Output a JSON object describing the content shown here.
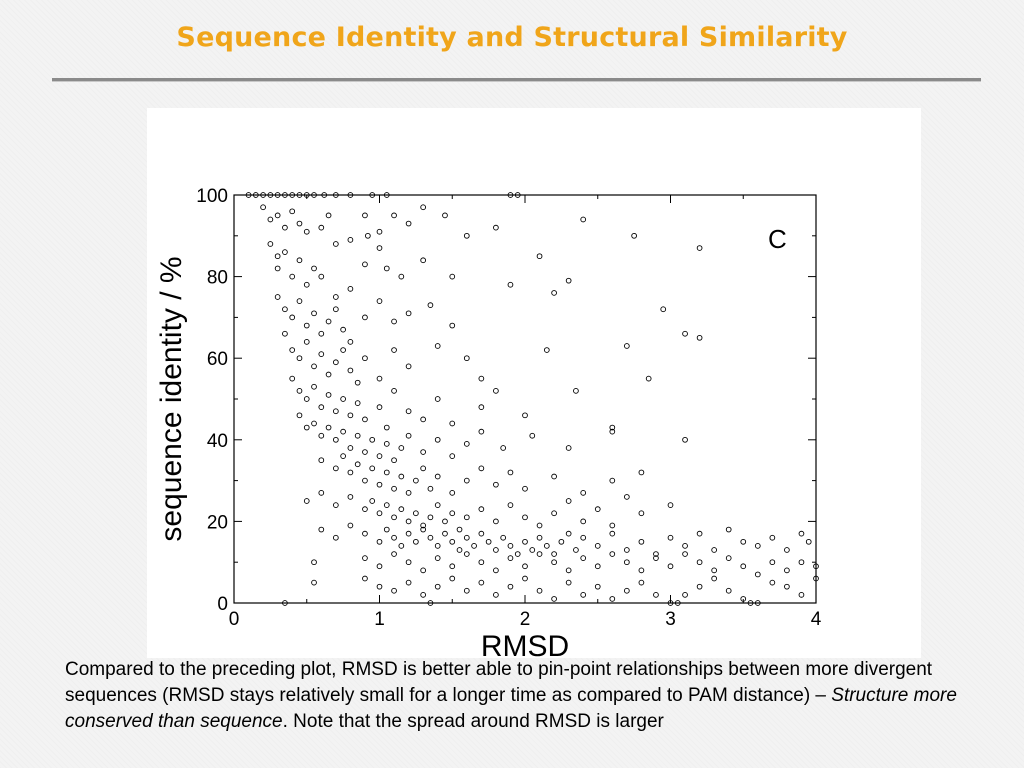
{
  "slide": {
    "title": "Sequence Identity and Structural Similarity"
  },
  "caption": {
    "part1": "Compared to the preceding plot, RMSD is better able to pin-point relationships between more divergent sequences (RMSD stays relatively small for a longer time as compared to PAM distance) – ",
    "emphasis": "Structure more conserved than sequence",
    "part2": ". Note that the spread around RMSD is larger"
  },
  "chart_data": {
    "type": "scatter",
    "panel_label": "C",
    "xlabel": "RMSD",
    "ylabel": "sequence identity / %",
    "xlim": [
      0,
      4
    ],
    "ylim": [
      0,
      100
    ],
    "xticks": [
      0,
      1,
      2,
      3,
      4
    ],
    "yticks": [
      0,
      20,
      40,
      60,
      80,
      100
    ],
    "grid": false,
    "legend": "none",
    "marker_color": "#000000",
    "series": [
      {
        "points": [
          [
            0.1,
            100
          ],
          [
            0.15,
            100
          ],
          [
            0.2,
            100
          ],
          [
            0.25,
            100
          ],
          [
            0.3,
            100
          ],
          [
            0.35,
            100
          ],
          [
            0.4,
            100
          ],
          [
            0.45,
            100
          ],
          [
            0.5,
            100
          ],
          [
            0.55,
            100
          ],
          [
            0.62,
            100
          ],
          [
            0.7,
            100
          ],
          [
            0.8,
            100
          ],
          [
            0.95,
            100
          ],
          [
            1.05,
            100
          ],
          [
            1.9,
            100
          ],
          [
            1.95,
            100
          ],
          [
            0.2,
            97
          ],
          [
            0.25,
            94
          ],
          [
            0.3,
            95
          ],
          [
            0.35,
            92
          ],
          [
            0.4,
            96
          ],
          [
            0.45,
            93
          ],
          [
            0.5,
            91
          ],
          [
            0.6,
            92
          ],
          [
            0.65,
            95
          ],
          [
            0.7,
            88
          ],
          [
            0.8,
            89
          ],
          [
            0.9,
            95
          ],
          [
            0.92,
            90
          ],
          [
            1.0,
            91
          ],
          [
            1.1,
            95
          ],
          [
            1.2,
            93
          ],
          [
            1.3,
            97
          ],
          [
            1.45,
            95
          ],
          [
            1.6,
            90
          ],
          [
            1.8,
            92
          ],
          [
            2.4,
            94
          ],
          [
            0.25,
            88
          ],
          [
            0.3,
            85
          ],
          [
            0.3,
            82
          ],
          [
            0.35,
            86
          ],
          [
            0.4,
            80
          ],
          [
            0.45,
            84
          ],
          [
            0.5,
            78
          ],
          [
            0.55,
            82
          ],
          [
            0.6,
            80
          ],
          [
            0.7,
            75
          ],
          [
            0.8,
            77
          ],
          [
            0.9,
            83
          ],
          [
            1.0,
            87
          ],
          [
            1.05,
            82
          ],
          [
            1.15,
            80
          ],
          [
            1.3,
            84
          ],
          [
            1.5,
            80
          ],
          [
            1.9,
            78
          ],
          [
            2.1,
            85
          ],
          [
            2.3,
            79
          ],
          [
            2.75,
            90
          ],
          [
            3.2,
            87
          ],
          [
            0.3,
            75
          ],
          [
            0.35,
            72
          ],
          [
            0.4,
            70
          ],
          [
            0.45,
            74
          ],
          [
            0.5,
            68
          ],
          [
            0.55,
            71
          ],
          [
            0.6,
            66
          ],
          [
            0.65,
            69
          ],
          [
            0.7,
            72
          ],
          [
            0.75,
            67
          ],
          [
            0.8,
            64
          ],
          [
            0.9,
            70
          ],
          [
            1.0,
            74
          ],
          [
            1.1,
            69
          ],
          [
            1.2,
            71
          ],
          [
            1.35,
            73
          ],
          [
            1.5,
            68
          ],
          [
            2.2,
            76
          ],
          [
            2.95,
            72
          ],
          [
            3.1,
            66
          ],
          [
            3.2,
            65
          ],
          [
            0.35,
            66
          ],
          [
            0.4,
            62
          ],
          [
            0.45,
            60
          ],
          [
            0.5,
            64
          ],
          [
            0.55,
            58
          ],
          [
            0.6,
            61
          ],
          [
            0.65,
            56
          ],
          [
            0.7,
            59
          ],
          [
            0.75,
            62
          ],
          [
            0.8,
            57
          ],
          [
            0.85,
            54
          ],
          [
            0.9,
            60
          ],
          [
            1.0,
            55
          ],
          [
            1.1,
            62
          ],
          [
            1.2,
            58
          ],
          [
            1.4,
            63
          ],
          [
            1.6,
            60
          ],
          [
            1.7,
            55
          ],
          [
            2.15,
            62
          ],
          [
            2.7,
            63
          ],
          [
            2.85,
            55
          ],
          [
            0.4,
            55
          ],
          [
            0.45,
            52
          ],
          [
            0.5,
            50
          ],
          [
            0.55,
            53
          ],
          [
            0.6,
            48
          ],
          [
            0.65,
            51
          ],
          [
            0.7,
            47
          ],
          [
            0.75,
            50
          ],
          [
            0.8,
            46
          ],
          [
            0.85,
            49
          ],
          [
            0.9,
            45
          ],
          [
            1.0,
            48
          ],
          [
            1.05,
            43
          ],
          [
            1.1,
            52
          ],
          [
            1.2,
            47
          ],
          [
            1.3,
            45
          ],
          [
            1.4,
            50
          ],
          [
            1.5,
            44
          ],
          [
            1.7,
            48
          ],
          [
            1.8,
            52
          ],
          [
            2.0,
            46
          ],
          [
            2.35,
            52
          ],
          [
            2.6,
            42
          ],
          [
            0.45,
            46
          ],
          [
            0.5,
            43
          ],
          [
            0.55,
            44
          ],
          [
            0.6,
            41
          ],
          [
            0.65,
            43
          ],
          [
            0.7,
            40
          ],
          [
            0.75,
            42
          ],
          [
            0.8,
            38
          ],
          [
            0.85,
            41
          ],
          [
            0.9,
            37
          ],
          [
            0.95,
            40
          ],
          [
            1.0,
            36
          ],
          [
            1.05,
            39
          ],
          [
            1.1,
            35
          ],
          [
            1.15,
            38
          ],
          [
            1.2,
            41
          ],
          [
            1.3,
            37
          ],
          [
            1.4,
            40
          ],
          [
            1.5,
            36
          ],
          [
            1.6,
            39
          ],
          [
            1.7,
            42
          ],
          [
            1.85,
            38
          ],
          [
            2.05,
            41
          ],
          [
            2.3,
            38
          ],
          [
            2.6,
            43
          ],
          [
            3.1,
            40
          ],
          [
            0.6,
            35
          ],
          [
            0.7,
            33
          ],
          [
            0.75,
            36
          ],
          [
            0.8,
            32
          ],
          [
            0.85,
            34
          ],
          [
            0.9,
            30
          ],
          [
            0.95,
            33
          ],
          [
            1.0,
            29
          ],
          [
            1.05,
            32
          ],
          [
            1.1,
            28
          ],
          [
            1.15,
            31
          ],
          [
            1.2,
            27
          ],
          [
            1.25,
            30
          ],
          [
            1.3,
            33
          ],
          [
            1.35,
            28
          ],
          [
            1.4,
            31
          ],
          [
            1.5,
            27
          ],
          [
            1.6,
            30
          ],
          [
            1.7,
            33
          ],
          [
            1.8,
            29
          ],
          [
            1.9,
            32
          ],
          [
            2.0,
            28
          ],
          [
            2.2,
            31
          ],
          [
            2.4,
            27
          ],
          [
            2.6,
            30
          ],
          [
            2.8,
            32
          ],
          [
            0.5,
            25
          ],
          [
            0.6,
            27
          ],
          [
            0.7,
            24
          ],
          [
            0.8,
            26
          ],
          [
            0.9,
            23
          ],
          [
            0.95,
            25
          ],
          [
            1.0,
            22
          ],
          [
            1.05,
            24
          ],
          [
            1.1,
            21
          ],
          [
            1.15,
            23
          ],
          [
            1.2,
            20
          ],
          [
            1.25,
            22
          ],
          [
            1.3,
            19
          ],
          [
            1.35,
            21
          ],
          [
            1.4,
            24
          ],
          [
            1.45,
            20
          ],
          [
            1.5,
            22
          ],
          [
            1.55,
            18
          ],
          [
            1.6,
            21
          ],
          [
            1.7,
            23
          ],
          [
            1.8,
            20
          ],
          [
            1.9,
            24
          ],
          [
            2.0,
            21
          ],
          [
            2.1,
            19
          ],
          [
            2.2,
            22
          ],
          [
            2.3,
            25
          ],
          [
            2.4,
            20
          ],
          [
            2.5,
            23
          ],
          [
            2.6,
            19
          ],
          [
            2.7,
            26
          ],
          [
            2.8,
            22
          ],
          [
            3.0,
            24
          ],
          [
            0.6,
            18
          ],
          [
            0.7,
            16
          ],
          [
            0.8,
            19
          ],
          [
            0.9,
            17
          ],
          [
            1.0,
            15
          ],
          [
            1.05,
            18
          ],
          [
            1.1,
            16
          ],
          [
            1.15,
            14
          ],
          [
            1.2,
            17
          ],
          [
            1.25,
            15
          ],
          [
            1.3,
            18
          ],
          [
            1.35,
            16
          ],
          [
            1.4,
            14
          ],
          [
            1.45,
            17
          ],
          [
            1.5,
            15
          ],
          [
            1.55,
            13
          ],
          [
            1.6,
            16
          ],
          [
            1.65,
            14
          ],
          [
            1.7,
            17
          ],
          [
            1.75,
            15
          ],
          [
            1.8,
            13
          ],
          [
            1.85,
            16
          ],
          [
            1.9,
            14
          ],
          [
            1.95,
            12
          ],
          [
            2.0,
            15
          ],
          [
            2.05,
            13
          ],
          [
            2.1,
            16
          ],
          [
            2.15,
            14
          ],
          [
            2.2,
            12
          ],
          [
            2.25,
            15
          ],
          [
            2.3,
            17
          ],
          [
            2.35,
            13
          ],
          [
            2.4,
            16
          ],
          [
            2.5,
            14
          ],
          [
            2.6,
            17
          ],
          [
            2.7,
            13
          ],
          [
            2.8,
            15
          ],
          [
            2.9,
            12
          ],
          [
            3.0,
            16
          ],
          [
            3.1,
            14
          ],
          [
            3.2,
            17
          ],
          [
            3.3,
            13
          ],
          [
            3.4,
            18
          ],
          [
            3.5,
            15
          ],
          [
            3.6,
            14
          ],
          [
            3.7,
            16
          ],
          [
            3.8,
            13
          ],
          [
            3.9,
            17
          ],
          [
            3.95,
            15
          ],
          [
            0.9,
            11
          ],
          [
            1.0,
            9
          ],
          [
            1.1,
            12
          ],
          [
            1.2,
            10
          ],
          [
            1.3,
            8
          ],
          [
            1.4,
            11
          ],
          [
            1.5,
            9
          ],
          [
            1.6,
            12
          ],
          [
            1.7,
            10
          ],
          [
            1.8,
            8
          ],
          [
            1.9,
            11
          ],
          [
            2.0,
            9
          ],
          [
            2.1,
            12
          ],
          [
            2.2,
            10
          ],
          [
            2.3,
            8
          ],
          [
            2.4,
            11
          ],
          [
            2.5,
            9
          ],
          [
            2.6,
            12
          ],
          [
            2.7,
            10
          ],
          [
            2.8,
            8
          ],
          [
            2.9,
            11
          ],
          [
            3.0,
            9
          ],
          [
            3.1,
            12
          ],
          [
            3.2,
            10
          ],
          [
            3.3,
            8
          ],
          [
            3.4,
            11
          ],
          [
            3.5,
            9
          ],
          [
            3.6,
            7
          ],
          [
            3.7,
            10
          ],
          [
            3.8,
            8
          ],
          [
            3.9,
            10
          ],
          [
            4.0,
            9
          ],
          [
            0.35,
            0
          ],
          [
            0.55,
            10
          ],
          [
            0.55,
            5
          ],
          [
            0.9,
            6
          ],
          [
            1.0,
            4
          ],
          [
            1.1,
            3
          ],
          [
            1.2,
            5
          ],
          [
            1.3,
            2
          ],
          [
            1.35,
            0
          ],
          [
            1.4,
            4
          ],
          [
            1.5,
            6
          ],
          [
            1.6,
            3
          ],
          [
            1.7,
            5
          ],
          [
            1.8,
            2
          ],
          [
            1.9,
            4
          ],
          [
            2.0,
            6
          ],
          [
            2.1,
            3
          ],
          [
            2.2,
            1
          ],
          [
            2.3,
            5
          ],
          [
            2.4,
            2
          ],
          [
            2.5,
            4
          ],
          [
            2.6,
            1
          ],
          [
            2.7,
            3
          ],
          [
            2.8,
            5
          ],
          [
            2.9,
            2
          ],
          [
            3.0,
            0
          ],
          [
            3.05,
            0
          ],
          [
            3.1,
            2
          ],
          [
            3.2,
            4
          ],
          [
            3.3,
            6
          ],
          [
            3.4,
            3
          ],
          [
            3.5,
            1
          ],
          [
            3.55,
            0
          ],
          [
            3.6,
            0
          ],
          [
            3.7,
            5
          ],
          [
            3.8,
            4
          ],
          [
            3.9,
            2
          ],
          [
            4.0,
            6
          ]
        ]
      }
    ]
  }
}
